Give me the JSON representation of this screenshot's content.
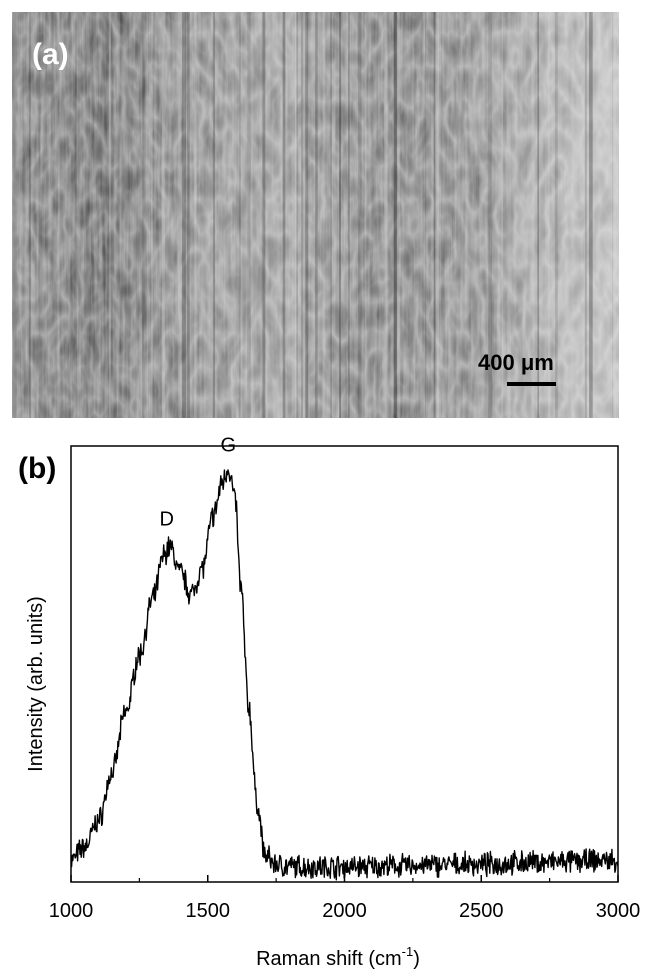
{
  "panel_a": {
    "label": "(a)",
    "scale_bar_label": "400 μm"
  },
  "panel_b": {
    "label": "(b)"
  },
  "chart_data": {
    "type": "line",
    "xlabel_main": "Raman shift (cm",
    "xlabel_sup": "-1",
    "xlabel_close": ")",
    "ylabel": "Intensity (arb. units)",
    "xlim": [
      1000,
      3000
    ],
    "ylim": [
      0,
      1
    ],
    "xticks": [
      "1000",
      "1500",
      "2000",
      "2500",
      "3000"
    ],
    "yticks_shown": false,
    "annotations": [
      {
        "text": "D",
        "x": 1350,
        "y": 0.79
      },
      {
        "text": "G",
        "x": 1575,
        "y": 0.96
      }
    ],
    "series": [
      {
        "x": [
          1000,
          1050,
          1100,
          1150,
          1200,
          1250,
          1300,
          1340,
          1360,
          1400,
          1440,
          1480,
          1520,
          1555,
          1575,
          1600,
          1620,
          1650,
          1680,
          1710,
          1750,
          1800,
          2000,
          2500,
          2700,
          3000
        ],
        "y": [
          0.05,
          0.08,
          0.14,
          0.25,
          0.39,
          0.52,
          0.65,
          0.75,
          0.77,
          0.71,
          0.66,
          0.72,
          0.84,
          0.92,
          0.95,
          0.88,
          0.68,
          0.4,
          0.18,
          0.06,
          0.04,
          0.035,
          0.035,
          0.04,
          0.045,
          0.05
        ]
      }
    ]
  }
}
